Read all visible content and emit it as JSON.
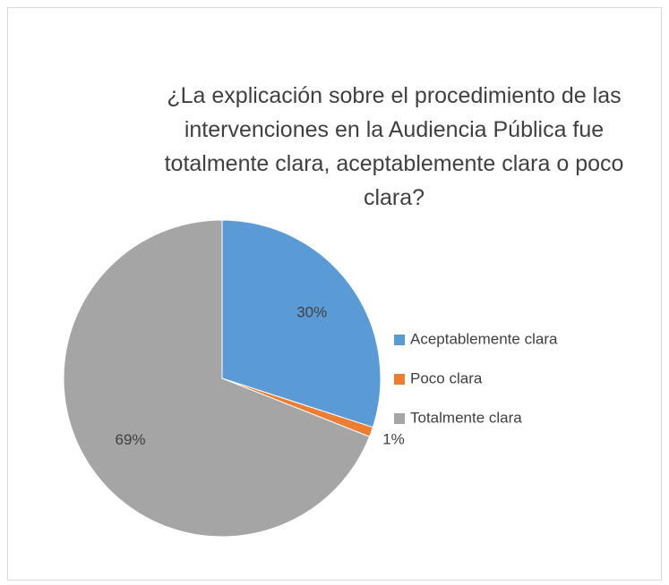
{
  "chart_data": {
    "type": "pie",
    "title": "¿La explicación sobre el procedimiento de las intervenciones en la Audiencia Pública fue totalmente clara, aceptablemente clara o poco clara?",
    "categories": [
      "Aceptablemente clara",
      "Poco clara",
      "Totalmente clara"
    ],
    "values": [
      30,
      1,
      69
    ],
    "value_labels": [
      "30%",
      "1%",
      "69%"
    ],
    "colors": [
      "#5b9bd5",
      "#ed7d31",
      "#a5a5a5"
    ],
    "legend": "right"
  }
}
